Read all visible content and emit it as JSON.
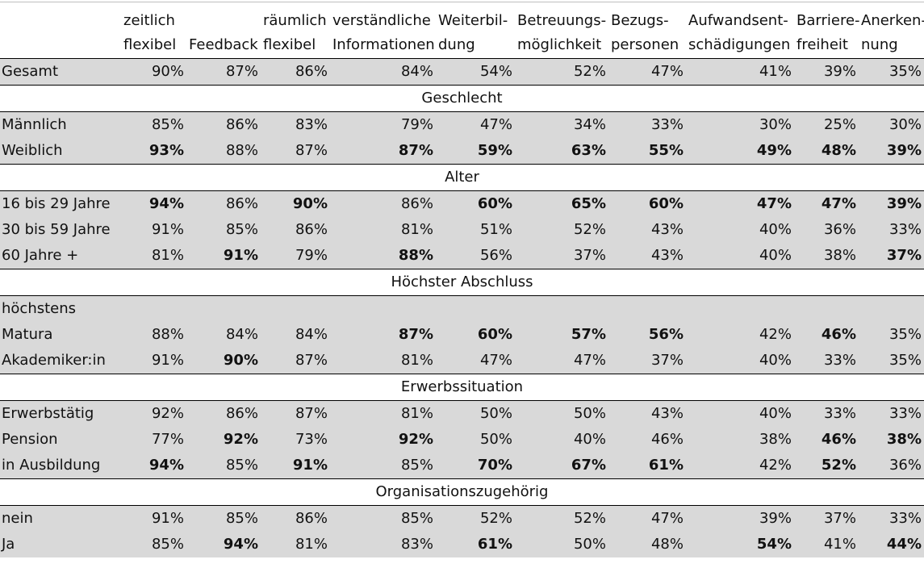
{
  "columns": [
    {
      "l1": "zeitlich",
      "l2": "flexibel"
    },
    {
      "l1": "",
      "l2": "Feedback"
    },
    {
      "l1": "räumlich",
      "l2": "flexibel"
    },
    {
      "l1": "verständliche",
      "l2": "Informationen"
    },
    {
      "l1": "Weiterbil-",
      "l2": "dung"
    },
    {
      "l1": "Betreuungs-",
      "l2": "möglichkeit"
    },
    {
      "l1": "Bezugs-",
      "l2": "personen"
    },
    {
      "l1": "Aufwandsent-",
      "l2": "schädigungen"
    },
    {
      "l1": "Barriere-",
      "l2": "freiheit"
    },
    {
      "l1": "Anerken-",
      "l2": "nung"
    }
  ],
  "total": {
    "label": "Gesamt",
    "values": [
      "90%",
      "87%",
      "86%",
      "84%",
      "54%",
      "52%",
      "47%",
      "41%",
      "39%",
      "35%"
    ],
    "bold": [
      false,
      false,
      false,
      false,
      false,
      false,
      false,
      false,
      false,
      false
    ]
  },
  "sections": [
    {
      "title": "Geschlecht",
      "rows": [
        {
          "label": "Männlich",
          "values": [
            "85%",
            "86%",
            "83%",
            "79%",
            "47%",
            "34%",
            "33%",
            "30%",
            "25%",
            "30%"
          ],
          "bold": [
            false,
            false,
            false,
            false,
            false,
            false,
            false,
            false,
            false,
            false
          ]
        },
        {
          "label": "Weiblich",
          "values": [
            "93%",
            "88%",
            "87%",
            "87%",
            "59%",
            "63%",
            "55%",
            "49%",
            "48%",
            "39%"
          ],
          "bold": [
            true,
            false,
            false,
            true,
            true,
            true,
            true,
            true,
            true,
            true
          ]
        }
      ]
    },
    {
      "title": "Alter",
      "rows": [
        {
          "label": "16 bis 29 Jahre",
          "values": [
            "94%",
            "86%",
            "90%",
            "86%",
            "60%",
            "65%",
            "60%",
            "47%",
            "47%",
            "39%"
          ],
          "bold": [
            true,
            false,
            true,
            false,
            true,
            true,
            true,
            true,
            true,
            true
          ]
        },
        {
          "label": "30 bis 59 Jahre",
          "values": [
            "91%",
            "85%",
            "86%",
            "81%",
            "51%",
            "52%",
            "43%",
            "40%",
            "36%",
            "33%"
          ],
          "bold": [
            false,
            false,
            false,
            false,
            false,
            false,
            false,
            false,
            false,
            false
          ]
        },
        {
          "label": "60 Jahre +",
          "values": [
            "81%",
            "91%",
            "79%",
            "88%",
            "56%",
            "37%",
            "43%",
            "40%",
            "38%",
            "37%"
          ],
          "bold": [
            false,
            true,
            false,
            true,
            false,
            false,
            false,
            false,
            false,
            true
          ]
        }
      ]
    },
    {
      "title": "Höchster Abschluss",
      "rows": [
        {
          "label": "höchstens",
          "values": [
            "",
            "",
            "",
            "",
            "",
            "",
            "",
            "",
            "",
            ""
          ],
          "bold": [
            false,
            false,
            false,
            false,
            false,
            false,
            false,
            false,
            false,
            false
          ]
        },
        {
          "label": "Matura",
          "values": [
            "88%",
            "84%",
            "84%",
            "87%",
            "60%",
            "57%",
            "56%",
            "42%",
            "46%",
            "35%"
          ],
          "bold": [
            false,
            false,
            false,
            true,
            true,
            true,
            true,
            false,
            true,
            false
          ]
        },
        {
          "label": "Akademiker:in",
          "values": [
            "91%",
            "90%",
            "87%",
            "81%",
            "47%",
            "47%",
            "37%",
            "40%",
            "33%",
            "35%"
          ],
          "bold": [
            false,
            true,
            false,
            false,
            false,
            false,
            false,
            false,
            false,
            false
          ]
        }
      ]
    },
    {
      "title": "Erwerbssituation",
      "rows": [
        {
          "label": "Erwerbstätig",
          "values": [
            "92%",
            "86%",
            "87%",
            "81%",
            "50%",
            "50%",
            "43%",
            "40%",
            "33%",
            "33%"
          ],
          "bold": [
            false,
            false,
            false,
            false,
            false,
            false,
            false,
            false,
            false,
            false
          ]
        },
        {
          "label": "Pension",
          "values": [
            "77%",
            "92%",
            "73%",
            "92%",
            "50%",
            "40%",
            "46%",
            "38%",
            "46%",
            "38%"
          ],
          "bold": [
            false,
            true,
            false,
            true,
            false,
            false,
            false,
            false,
            true,
            true
          ]
        },
        {
          "label": "in Ausbildung",
          "values": [
            "94%",
            "85%",
            "91%",
            "85%",
            "70%",
            "67%",
            "61%",
            "42%",
            "52%",
            "36%"
          ],
          "bold": [
            true,
            false,
            true,
            false,
            true,
            true,
            true,
            false,
            true,
            false
          ]
        }
      ]
    },
    {
      "title": "Organisationszugehörig",
      "rows": [
        {
          "label": "nein",
          "values": [
            "91%",
            "85%",
            "86%",
            "85%",
            "52%",
            "52%",
            "47%",
            "39%",
            "37%",
            "33%"
          ],
          "bold": [
            false,
            false,
            false,
            false,
            false,
            false,
            false,
            false,
            false,
            false
          ]
        },
        {
          "label": "Ja",
          "values": [
            "85%",
            "94%",
            "81%",
            "83%",
            "61%",
            "50%",
            "48%",
            "54%",
            "41%",
            "44%"
          ],
          "bold": [
            false,
            true,
            false,
            false,
            true,
            false,
            false,
            true,
            false,
            true
          ]
        }
      ]
    }
  ]
}
